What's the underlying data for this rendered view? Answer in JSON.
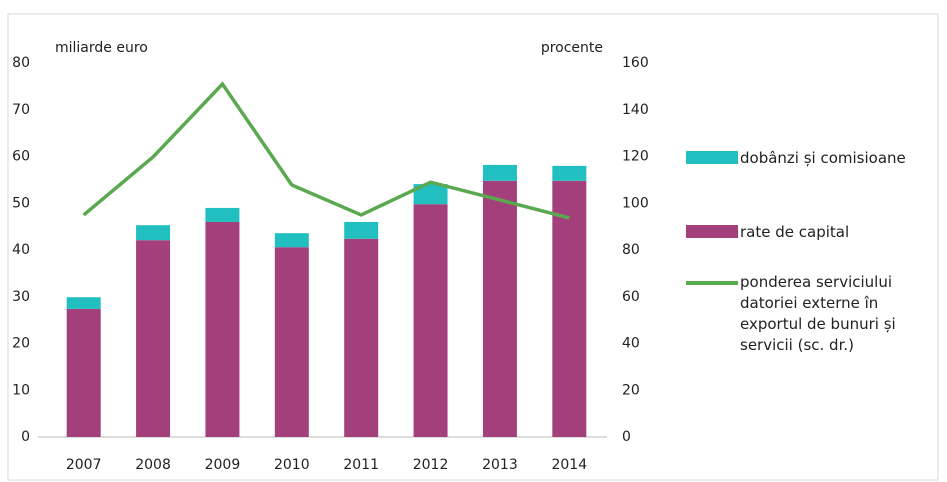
{
  "chart_data": {
    "type": "bar",
    "y_label": "miliarde euro",
    "y2_label": "procente",
    "categories": [
      "2007",
      "2008",
      "2009",
      "2010",
      "2011",
      "2012",
      "2013",
      "2014"
    ],
    "series": [
      {
        "name": "rate de capital",
        "color": "#a3407b",
        "values": [
          27.4,
          42.1,
          46.0,
          40.6,
          42.4,
          49.8,
          54.8,
          54.8
        ]
      },
      {
        "name": "dobânzi și comisioane",
        "color": "#22bfc0",
        "values": [
          2.5,
          3.2,
          3.0,
          3.0,
          3.6,
          4.3,
          3.4,
          3.2
        ]
      },
      {
        "name": "ponderea serviciului datoriei externe în exportul de bunuri și servicii (sc. dr.)",
        "type": "line",
        "axis": "y2",
        "color": "#5aa84f",
        "values": [
          95,
          119.8,
          151,
          107.8,
          95,
          109,
          101.4,
          93.7
        ]
      }
    ],
    "ylim": [
      0,
      80
    ],
    "yticks": [
      0,
      10,
      20,
      30,
      40,
      50,
      60,
      70,
      80
    ],
    "y2lim": [
      0,
      160
    ],
    "y2ticks": [
      0,
      20,
      40,
      60,
      80,
      100,
      120,
      140,
      160
    ],
    "stacked": true,
    "grid": false,
    "legend": "right"
  }
}
